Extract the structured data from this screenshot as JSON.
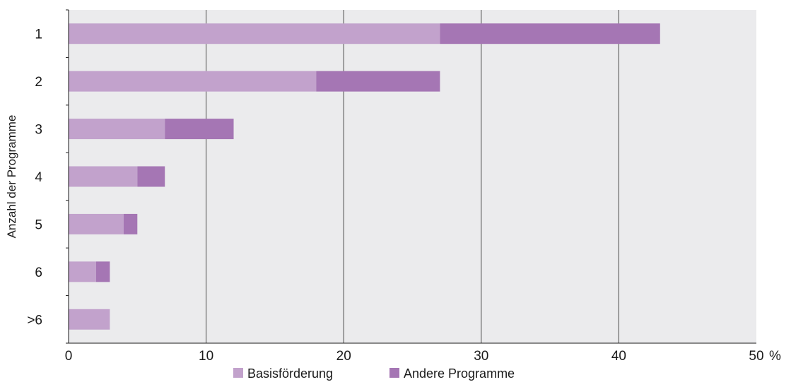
{
  "chart_data": {
    "type": "bar",
    "orientation": "horizontal",
    "stacked": true,
    "categories": [
      "1",
      "2",
      "3",
      "4",
      "5",
      "6",
      ">6"
    ],
    "series": [
      {
        "name": "Basisförderung",
        "values": [
          27,
          18,
          7,
          5,
          4,
          2,
          3
        ],
        "color": "#c2a2cc"
      },
      {
        "name": "Andere Programme",
        "values": [
          16,
          9,
          5,
          2,
          1,
          1,
          0
        ],
        "color": "#a576b4"
      }
    ],
    "xlabel": "",
    "ylabel": "Anzahl der Programme",
    "x_unit": "%",
    "xlim": [
      0,
      50
    ],
    "xticks": [
      0,
      10,
      20,
      30,
      40,
      50
    ],
    "grid": "vertical",
    "legend_position": "bottom",
    "plot_background": "#ebebed"
  }
}
